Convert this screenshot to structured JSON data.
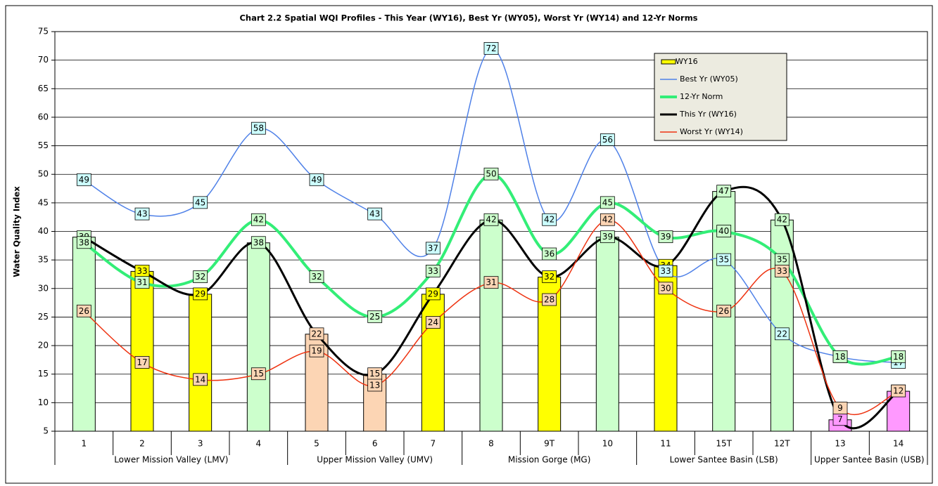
{
  "chart_data": {
    "type": "bar-line",
    "title": "Chart 2.2 Spatial WQI Profiles - This Year (WY16), Best Yr (WY05), Worst Yr (WY14) and 12-Yr Norms",
    "y_label": "Water Quality Index",
    "categories": [
      "1",
      "2",
      "3",
      "4",
      "5",
      "6",
      "7",
      "8",
      "9T",
      "10",
      "11",
      "15T",
      "12T",
      "13",
      "14"
    ],
    "groups": [
      {
        "label": "Lower Mission Valley (LMV)",
        "span": 4
      },
      {
        "label": "Upper Mission Valley (UMV)",
        "span": 3
      },
      {
        "label": "Mission Gorge (MG)",
        "span": 3
      },
      {
        "label": "Lower Santee Basin (LSB)",
        "span": 3
      },
      {
        "label": "Upper Santee Basin (USB)",
        "span": 2
      }
    ],
    "ylim": [
      5,
      75
    ],
    "yticks": [
      5,
      10,
      15,
      20,
      25,
      30,
      35,
      40,
      45,
      50,
      55,
      60,
      65,
      70,
      75
    ],
    "grid": true,
    "legend": "top-right",
    "series": [
      {
        "name": "WY16",
        "kind": "bar",
        "colors": [
          "#ccffcc",
          "#ffff00",
          "#ffff00",
          "#ccffcc",
          "#fcd5b4",
          "#fcd5b4",
          "#ffff00",
          "#ccffcc",
          "#ffff00",
          "#ccffcc",
          "#ffff00",
          "#ccffcc",
          "#ccffcc",
          "#ff99ff",
          "#ff99ff"
        ],
        "values": [
          39,
          33,
          29,
          38,
          22,
          15,
          29,
          42,
          32,
          39,
          34,
          47,
          42,
          7,
          12
        ]
      },
      {
        "name": "Best Yr (WY05)",
        "kind": "line",
        "color": "#4f81e8",
        "width": 1.5,
        "label_color": "#ccffff",
        "values": [
          49,
          43,
          45,
          58,
          49,
          43,
          37,
          72,
          42,
          56,
          33,
          35,
          22,
          18,
          17
        ]
      },
      {
        "name": "12-Yr Norm",
        "kind": "line",
        "color": "#33ee77",
        "width": 4,
        "label_color": "#ccffcc",
        "values": [
          38,
          31,
          32,
          42,
          32,
          25,
          33,
          50,
          36,
          45,
          39,
          40,
          35,
          18,
          18
        ]
      },
      {
        "name": "This Yr (WY16)",
        "kind": "line",
        "color": "#000000",
        "width": 3,
        "values": [
          39,
          33,
          29,
          38,
          22,
          15,
          29,
          42,
          32,
          39,
          34,
          47,
          42,
          7,
          12
        ]
      },
      {
        "name": "Worst Yr (WY14)",
        "kind": "line",
        "color": "#ee3311",
        "width": 1.5,
        "label_color": "#fcd5b4",
        "values": [
          26,
          17,
          14,
          15,
          19,
          13,
          24,
          31,
          28,
          42,
          30,
          26,
          33,
          9,
          12
        ]
      }
    ]
  }
}
